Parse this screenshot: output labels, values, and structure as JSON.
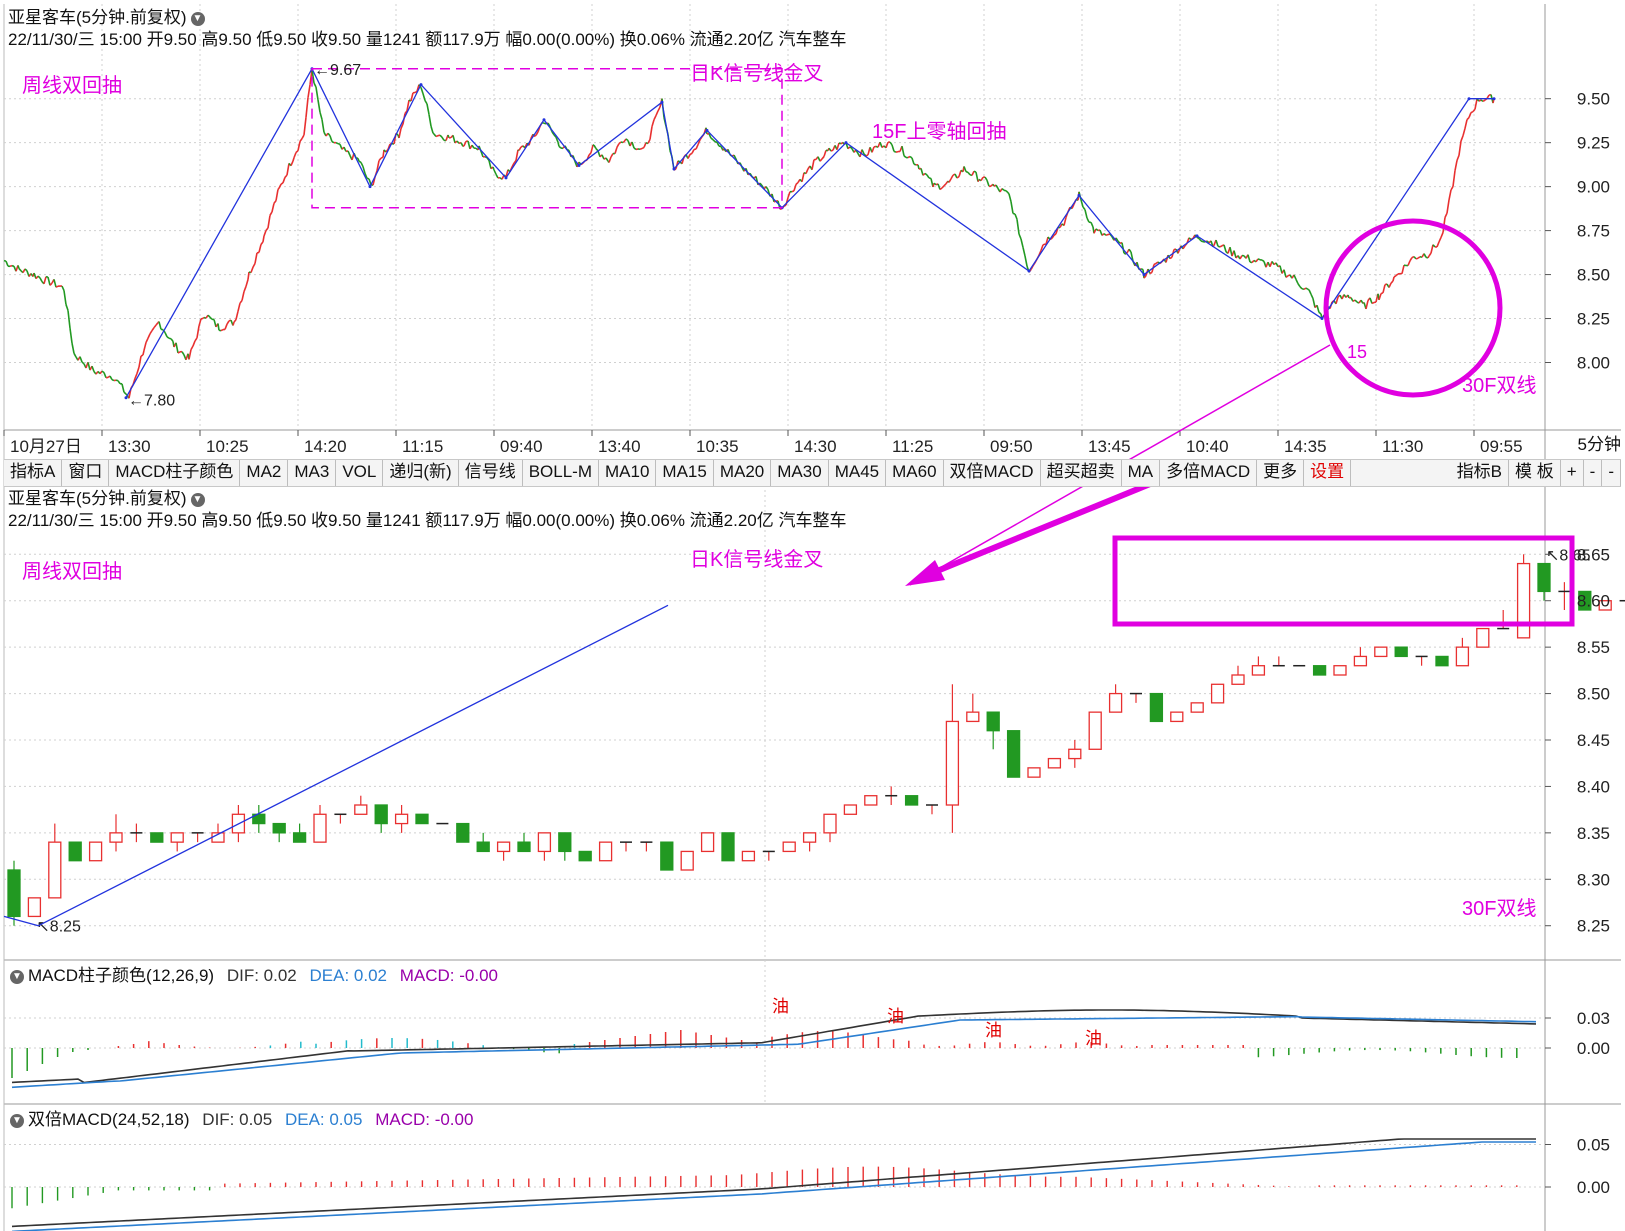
{
  "stock": {
    "name": "亚星客车",
    "period": "(5分钟.前复权)",
    "quote_line": "22/11/30/三 15:00 开9.50 高9.50 低9.50 收9.50 量1241 额117.9万 幅0.00(0.00%) 换0.06% 流通2.20亿 汽车整车"
  },
  "timeframe_label": "5分钟",
  "toolbar": {
    "items": [
      "指标A",
      "窗口",
      "MACD柱子颜色",
      "MA2",
      "MA3",
      "VOL",
      "递归(新)",
      "信号线",
      "BOLL-M",
      "MA10",
      "MA15",
      "MA20",
      "MA30",
      "MA45",
      "MA60",
      "双倍MACD",
      "超买超卖",
      "MA",
      "多倍MACD",
      "更多",
      "设置"
    ],
    "right_items": [
      "指标B",
      "模 板",
      "+",
      "-",
      "-"
    ]
  },
  "colors": {
    "up": "#e83030",
    "down": "#229922",
    "annotation": "#e000e0",
    "trendline": "#2233dd",
    "grid": "#d0d0d0",
    "dif": "#333333",
    "dea": "#2b7fd1"
  },
  "chart_data": [
    {
      "type": "line",
      "panel": "top",
      "x_tick_labels": [
        "10月27日",
        "13:30",
        "10:25",
        "14:20",
        "11:15",
        "09:40",
        "13:40",
        "10:35",
        "14:30",
        "11:25",
        "09:50",
        "13:45",
        "10:40",
        "14:35",
        "11:30",
        "09:55"
      ],
      "y_ticks": [
        8.0,
        8.25,
        8.5,
        8.75,
        9.0,
        9.25,
        9.5
      ],
      "ylim": [
        7.73,
        9.72
      ],
      "price_anchors": [
        [
          0,
          8.58
        ],
        [
          15,
          8.53
        ],
        [
          30,
          8.5
        ],
        [
          40,
          8.47
        ],
        [
          50,
          8.45
        ],
        [
          60,
          8.42
        ],
        [
          70,
          8.05
        ],
        [
          90,
          7.95
        ],
        [
          110,
          7.92
        ],
        [
          125,
          7.8
        ],
        [
          140,
          8.08
        ],
        [
          155,
          8.23
        ],
        [
          170,
          8.1
        ],
        [
          185,
          8.02
        ],
        [
          200,
          8.28
        ],
        [
          215,
          8.2
        ],
        [
          230,
          8.23
        ],
        [
          245,
          8.5
        ],
        [
          260,
          8.72
        ],
        [
          275,
          8.98
        ],
        [
          290,
          9.18
        ],
        [
          300,
          9.3
        ],
        [
          308,
          9.67
        ],
        [
          320,
          9.3
        ],
        [
          340,
          9.2
        ],
        [
          355,
          9.15
        ],
        [
          367,
          9.0
        ],
        [
          380,
          9.2
        ],
        [
          395,
          9.3
        ],
        [
          405,
          9.48
        ],
        [
          417,
          9.58
        ],
        [
          430,
          9.3
        ],
        [
          445,
          9.28
        ],
        [
          460,
          9.25
        ],
        [
          475,
          9.22
        ],
        [
          490,
          9.08
        ],
        [
          502,
          9.05
        ],
        [
          515,
          9.2
        ],
        [
          530,
          9.28
        ],
        [
          540,
          9.38
        ],
        [
          555,
          9.25
        ],
        [
          575,
          9.12
        ],
        [
          590,
          9.22
        ],
        [
          605,
          9.15
        ],
        [
          620,
          9.28
        ],
        [
          640,
          9.2
        ],
        [
          658,
          9.48
        ],
        [
          670,
          9.1
        ],
        [
          690,
          9.22
        ],
        [
          703,
          9.32
        ],
        [
          720,
          9.22
        ],
        [
          740,
          9.1
        ],
        [
          760,
          9.0
        ],
        [
          778,
          8.88
        ],
        [
          790,
          9.0
        ],
        [
          810,
          9.13
        ],
        [
          825,
          9.2
        ],
        [
          840,
          9.25
        ],
        [
          860,
          9.18
        ],
        [
          880,
          9.25
        ],
        [
          900,
          9.2
        ],
        [
          915,
          9.12
        ],
        [
          930,
          9.0
        ],
        [
          945,
          9.02
        ],
        [
          960,
          9.1
        ],
        [
          975,
          9.05
        ],
        [
          990,
          9.0
        ],
        [
          1005,
          8.95
        ],
        [
          1015,
          8.75
        ],
        [
          1025,
          8.52
        ],
        [
          1040,
          8.68
        ],
        [
          1060,
          8.8
        ],
        [
          1075,
          8.95
        ],
        [
          1090,
          8.75
        ],
        [
          1110,
          8.7
        ],
        [
          1125,
          8.62
        ],
        [
          1140,
          8.5
        ],
        [
          1160,
          8.58
        ],
        [
          1175,
          8.65
        ],
        [
          1193,
          8.72
        ],
        [
          1210,
          8.68
        ],
        [
          1230,
          8.62
        ],
        [
          1250,
          8.58
        ],
        [
          1270,
          8.55
        ],
        [
          1290,
          8.48
        ],
        [
          1305,
          8.4
        ],
        [
          1318,
          8.25
        ],
        [
          1330,
          8.35
        ],
        [
          1345,
          8.38
        ],
        [
          1360,
          8.32
        ],
        [
          1375,
          8.38
        ],
        [
          1390,
          8.48
        ],
        [
          1410,
          8.6
        ],
        [
          1425,
          8.62
        ],
        [
          1437,
          8.7
        ],
        [
          1445,
          8.9
        ],
        [
          1455,
          9.2
        ],
        [
          1465,
          9.4
        ],
        [
          1475,
          9.5
        ],
        [
          1490,
          9.5
        ]
      ],
      "labels": [
        {
          "text": "9.67",
          "x": 308,
          "y": 9.67
        },
        {
          "text": "7.80",
          "x": 122,
          "y": 7.8
        }
      ],
      "trend_points": [
        [
          122,
          7.8
        ],
        [
          308,
          9.67
        ],
        [
          366,
          9.0
        ],
        [
          417,
          9.58
        ],
        [
          502,
          9.05
        ],
        [
          540,
          9.38
        ],
        [
          575,
          9.12
        ],
        [
          658,
          9.48
        ],
        [
          670,
          9.1
        ],
        [
          703,
          9.32
        ],
        [
          778,
          8.88
        ],
        [
          842,
          9.25
        ],
        [
          1025,
          8.52
        ],
        [
          1075,
          8.95
        ],
        [
          1140,
          8.5
        ],
        [
          1193,
          8.72
        ],
        [
          1318,
          8.25
        ],
        [
          1465,
          9.5
        ],
        [
          1490,
          9.5
        ]
      ],
      "box": {
        "x0": 308,
        "x1": 778,
        "y0": 9.67,
        "y1": 8.88
      },
      "annotations": [
        {
          "text": "周线双回抽"
        },
        {
          "text": "日K信号线金叉"
        },
        {
          "text": "15F上零轴回抽"
        },
        {
          "text": "15"
        },
        {
          "text": "30F双线"
        }
      ]
    },
    {
      "type": "candlestick",
      "panel": "middle",
      "y_ticks": [
        8.25,
        8.3,
        8.35,
        8.4,
        8.45,
        8.5,
        8.55,
        8.6,
        8.65
      ],
      "ylim": [
        8.24,
        8.66
      ],
      "candles": [
        [
          8.31,
          8.26,
          8.32,
          8.25
        ],
        [
          8.26,
          8.28,
          8.28,
          8.26
        ],
        [
          8.28,
          8.34,
          8.36,
          8.28
        ],
        [
          8.34,
          8.32,
          8.34,
          8.32
        ],
        [
          8.32,
          8.34,
          8.34,
          8.32
        ],
        [
          8.34,
          8.35,
          8.37,
          8.33
        ],
        [
          8.35,
          8.35,
          8.36,
          8.34
        ],
        [
          8.35,
          8.34,
          8.35,
          8.34
        ],
        [
          8.34,
          8.35,
          8.35,
          8.33
        ],
        [
          8.35,
          8.35,
          8.35,
          8.34
        ],
        [
          8.34,
          8.35,
          8.36,
          8.34
        ],
        [
          8.35,
          8.37,
          8.38,
          8.34
        ],
        [
          8.37,
          8.36,
          8.38,
          8.35
        ],
        [
          8.36,
          8.35,
          8.36,
          8.34
        ],
        [
          8.35,
          8.34,
          8.36,
          8.34
        ],
        [
          8.34,
          8.37,
          8.38,
          8.34
        ],
        [
          8.37,
          8.37,
          8.37,
          8.36
        ],
        [
          8.37,
          8.38,
          8.39,
          8.37
        ],
        [
          8.38,
          8.36,
          8.38,
          8.35
        ],
        [
          8.36,
          8.37,
          8.38,
          8.35
        ],
        [
          8.37,
          8.36,
          8.37,
          8.36
        ],
        [
          8.36,
          8.36,
          8.36,
          8.36
        ],
        [
          8.36,
          8.34,
          8.36,
          8.34
        ],
        [
          8.34,
          8.33,
          8.35,
          8.33
        ],
        [
          8.33,
          8.34,
          8.34,
          8.32
        ],
        [
          8.34,
          8.33,
          8.35,
          8.33
        ],
        [
          8.33,
          8.35,
          8.35,
          8.32
        ],
        [
          8.35,
          8.33,
          8.35,
          8.32
        ],
        [
          8.33,
          8.32,
          8.33,
          8.32
        ],
        [
          8.32,
          8.34,
          8.34,
          8.32
        ],
        [
          8.34,
          8.34,
          8.34,
          8.33
        ],
        [
          8.34,
          8.34,
          8.34,
          8.33
        ],
        [
          8.34,
          8.31,
          8.34,
          8.31
        ],
        [
          8.31,
          8.33,
          8.33,
          8.31
        ],
        [
          8.33,
          8.35,
          8.35,
          8.33
        ],
        [
          8.35,
          8.32,
          8.35,
          8.32
        ],
        [
          8.32,
          8.33,
          8.33,
          8.32
        ],
        [
          8.33,
          8.33,
          8.33,
          8.32
        ],
        [
          8.33,
          8.34,
          8.34,
          8.33
        ],
        [
          8.34,
          8.35,
          8.35,
          8.33
        ],
        [
          8.35,
          8.37,
          8.37,
          8.34
        ],
        [
          8.37,
          8.38,
          8.38,
          8.37
        ],
        [
          8.38,
          8.39,
          8.39,
          8.38
        ],
        [
          8.39,
          8.39,
          8.4,
          8.38
        ],
        [
          8.39,
          8.38,
          8.39,
          8.38
        ],
        [
          8.38,
          8.38,
          8.38,
          8.37
        ],
        [
          8.38,
          8.47,
          8.51,
          8.35
        ],
        [
          8.47,
          8.48,
          8.5,
          8.47
        ],
        [
          8.48,
          8.46,
          8.48,
          8.44
        ],
        [
          8.46,
          8.41,
          8.46,
          8.41
        ],
        [
          8.41,
          8.42,
          8.42,
          8.41
        ],
        [
          8.42,
          8.43,
          8.43,
          8.42
        ],
        [
          8.43,
          8.44,
          8.45,
          8.42
        ],
        [
          8.44,
          8.48,
          8.48,
          8.44
        ],
        [
          8.48,
          8.5,
          8.51,
          8.48
        ],
        [
          8.5,
          8.5,
          8.5,
          8.49
        ],
        [
          8.5,
          8.47,
          8.5,
          8.47
        ],
        [
          8.47,
          8.48,
          8.48,
          8.47
        ],
        [
          8.48,
          8.49,
          8.49,
          8.48
        ],
        [
          8.49,
          8.51,
          8.51,
          8.49
        ],
        [
          8.51,
          8.52,
          8.53,
          8.51
        ],
        [
          8.52,
          8.53,
          8.54,
          8.52
        ],
        [
          8.53,
          8.53,
          8.54,
          8.53
        ],
        [
          8.53,
          8.53,
          8.53,
          8.53
        ],
        [
          8.53,
          8.52,
          8.53,
          8.52
        ],
        [
          8.52,
          8.53,
          8.53,
          8.52
        ],
        [
          8.53,
          8.54,
          8.55,
          8.53
        ],
        [
          8.54,
          8.55,
          8.55,
          8.54
        ],
        [
          8.55,
          8.54,
          8.55,
          8.54
        ],
        [
          8.54,
          8.54,
          8.54,
          8.53
        ],
        [
          8.54,
          8.53,
          8.54,
          8.53
        ],
        [
          8.53,
          8.55,
          8.56,
          8.53
        ],
        [
          8.55,
          8.57,
          8.57,
          8.55
        ],
        [
          8.57,
          8.57,
          8.59,
          8.57
        ],
        [
          8.56,
          8.64,
          8.65,
          8.56
        ],
        [
          8.64,
          8.61,
          8.64,
          8.6
        ],
        [
          8.61,
          8.61,
          8.62,
          8.59
        ],
        [
          8.61,
          8.59,
          8.61,
          8.59
        ],
        [
          8.59,
          8.6,
          8.6,
          8.59
        ],
        [
          8.6,
          8.6,
          8.61,
          8.59
        ],
        [
          8.6,
          8.6,
          8.61,
          8.6
        ],
        [
          8.6,
          8.6,
          8.6,
          8.6
        ],
        [
          8.61,
          8.6,
          8.61,
          8.6
        ],
        [
          8.6,
          8.59,
          8.6,
          8.59
        ],
        [
          8.59,
          8.59,
          8.6,
          8.58
        ],
        [
          8.59,
          8.6,
          8.6,
          8.59
        ],
        [
          8.61,
          8.6,
          8.61,
          8.6
        ],
        [
          8.59,
          8.59,
          8.6,
          8.59
        ],
        [
          8.59,
          8.59,
          8.6,
          8.59
        ],
        [
          8.59,
          8.59,
          8.6,
          8.59
        ],
        [
          8.59,
          8.59,
          8.6,
          8.59
        ],
        [
          8.59,
          8.61,
          8.62,
          8.59
        ],
        [
          8.61,
          8.61,
          8.62,
          8.6
        ],
        [
          8.61,
          8.61,
          8.62,
          8.6
        ],
        [
          8.61,
          8.6,
          8.61,
          8.6
        ],
        [
          8.6,
          8.63,
          8.64,
          8.6
        ],
        [
          8.63,
          8.64,
          8.65,
          8.63
        ]
      ],
      "labels": [
        {
          "text": "8.65",
          "candle": 75,
          "y": 8.65
        },
        {
          "text": "8.25",
          "candle": 1,
          "y": 8.25
        }
      ],
      "annotations": [
        {
          "text": "周线双回抽"
        },
        {
          "text": "日K信号线金叉"
        },
        {
          "text": "30F双线"
        }
      ]
    },
    {
      "type": "bar",
      "panel": "macd",
      "title": "MACD柱子颜色(12,26,9)",
      "dif_label": "DIF: 0.02",
      "dea_label": "DEA: 0.02",
      "macd_label": "MACD: -0.00",
      "y_ticks": [
        0.0,
        0.03
      ],
      "markers": [
        "油",
        "油",
        "油",
        "油"
      ]
    },
    {
      "type": "bar",
      "panel": "dmacd",
      "title": "双倍MACD(24,52,18)",
      "dif_label": "DIF: 0.05",
      "dea_label": "DEA: 0.05",
      "macd_label": "MACD: -0.00",
      "y_ticks": [
        0.0,
        0.05
      ]
    }
  ]
}
